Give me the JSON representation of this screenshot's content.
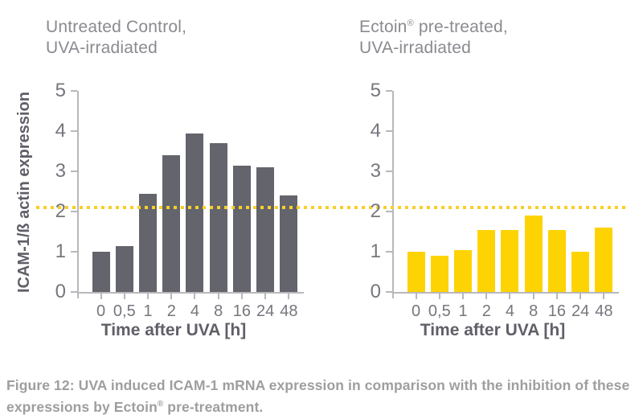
{
  "colors": {
    "background": "#ffffff",
    "bar_gray": "#63646c",
    "bar_yellow": "#fed303",
    "threshold_yellow": "#f7cf2a",
    "axis_line": "#b8b8bc",
    "tick_label": "#76767e",
    "panel_title": "#8a8a90",
    "axis_title": "#5f5f68",
    "caption_text": "#9e9e9e"
  },
  "threshold_line": {
    "y": 2.1,
    "style": "dotted",
    "color": "#f7cf2a",
    "spans": "both-panels"
  },
  "chart_data": [
    {
      "type": "bar",
      "title_line1_pre": "Untreated Control,",
      "title_line1_sup": "",
      "title_line1_post": "",
      "title_line2": "UVA-irradiated",
      "categories": [
        "0",
        "0,5",
        "1",
        "2",
        "4",
        "8",
        "16",
        "24",
        "48"
      ],
      "values": [
        1.0,
        1.15,
        2.45,
        3.4,
        3.95,
        3.7,
        3.15,
        3.1,
        2.4
      ],
      "xlabel": "Time after UVA [h]",
      "ylabel": "ICAM-1/ß actin expression",
      "ylim": [
        0,
        5
      ],
      "yticks": [
        5,
        4,
        3,
        2,
        1,
        0
      ],
      "grid": false,
      "legend": "none",
      "bar_color": "#63646c"
    },
    {
      "type": "bar",
      "title_line1_pre": "Ectoin",
      "title_line1_sup": "®",
      "title_line1_post": " pre-treated,",
      "title_line2": "UVA-irradiated",
      "categories": [
        "0",
        "0,5",
        "1",
        "2",
        "4",
        "8",
        "16",
        "24",
        "48"
      ],
      "values": [
        1.0,
        0.9,
        1.05,
        1.55,
        1.55,
        1.9,
        1.55,
        1.0,
        1.6
      ],
      "xlabel": "Time after UVA [h]",
      "ylabel": "",
      "ylim": [
        0,
        5
      ],
      "yticks": [
        5,
        4,
        3,
        2,
        1,
        0
      ],
      "grid": false,
      "legend": "none",
      "bar_color": "#fed303"
    }
  ],
  "caption": {
    "pre": "Figure 12: UVA induced ICAM-1 mRNA expression in comparison with the inhibition of these expressions by Ectoin",
    "sup": "®",
    "post": " pre-treatment."
  }
}
